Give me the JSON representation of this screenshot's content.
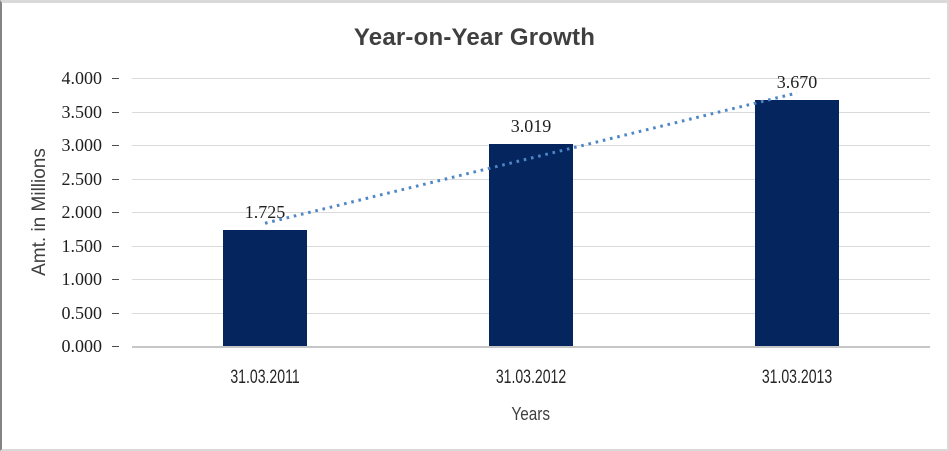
{
  "window": {
    "background_color": "#FFFFFF",
    "frame_color": "#D9D9D9",
    "frame_left_color": "#848484"
  },
  "chart_data": {
    "type": "bar",
    "title": "Year-on-Year Growth",
    "categories": [
      "31.03.2011",
      "31.03.2012",
      "31.03.2013"
    ],
    "values": [
      1.725,
      3.019,
      3.67
    ],
    "value_labels": [
      "1.725",
      "3.019",
      "3.670"
    ],
    "xlabel": "Years",
    "ylabel": "Amt. in Millions",
    "ylim": [
      0,
      4.0
    ],
    "ytick_step": 0.5,
    "ytick_labels": [
      "0.000",
      "0.500",
      "1.000",
      "1.500",
      "2.000",
      "2.500",
      "3.000",
      "3.500",
      "4.000"
    ],
    "grid": true,
    "legend_position": "none",
    "bar_color": "#05255E",
    "title_color": "#3F3F3F",
    "trendline": {
      "style": "dotted",
      "color": "#4E86C6",
      "start_value": 1.832,
      "end_value": 3.777
    }
  }
}
